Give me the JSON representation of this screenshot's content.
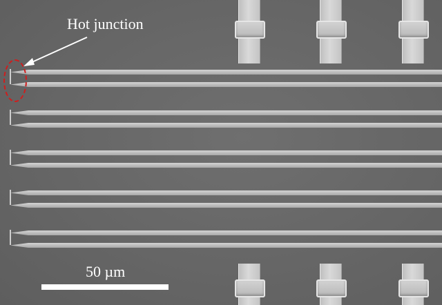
{
  "annotations": {
    "junction_label": "Hot junction",
    "scale_label": "50 µm"
  },
  "colors": {
    "background": "#666666",
    "strip": "#c4c4c4",
    "pad": "#cfcfcf",
    "highlight_ring": "#d21c1c",
    "annotation_text": "#ffffff"
  }
}
